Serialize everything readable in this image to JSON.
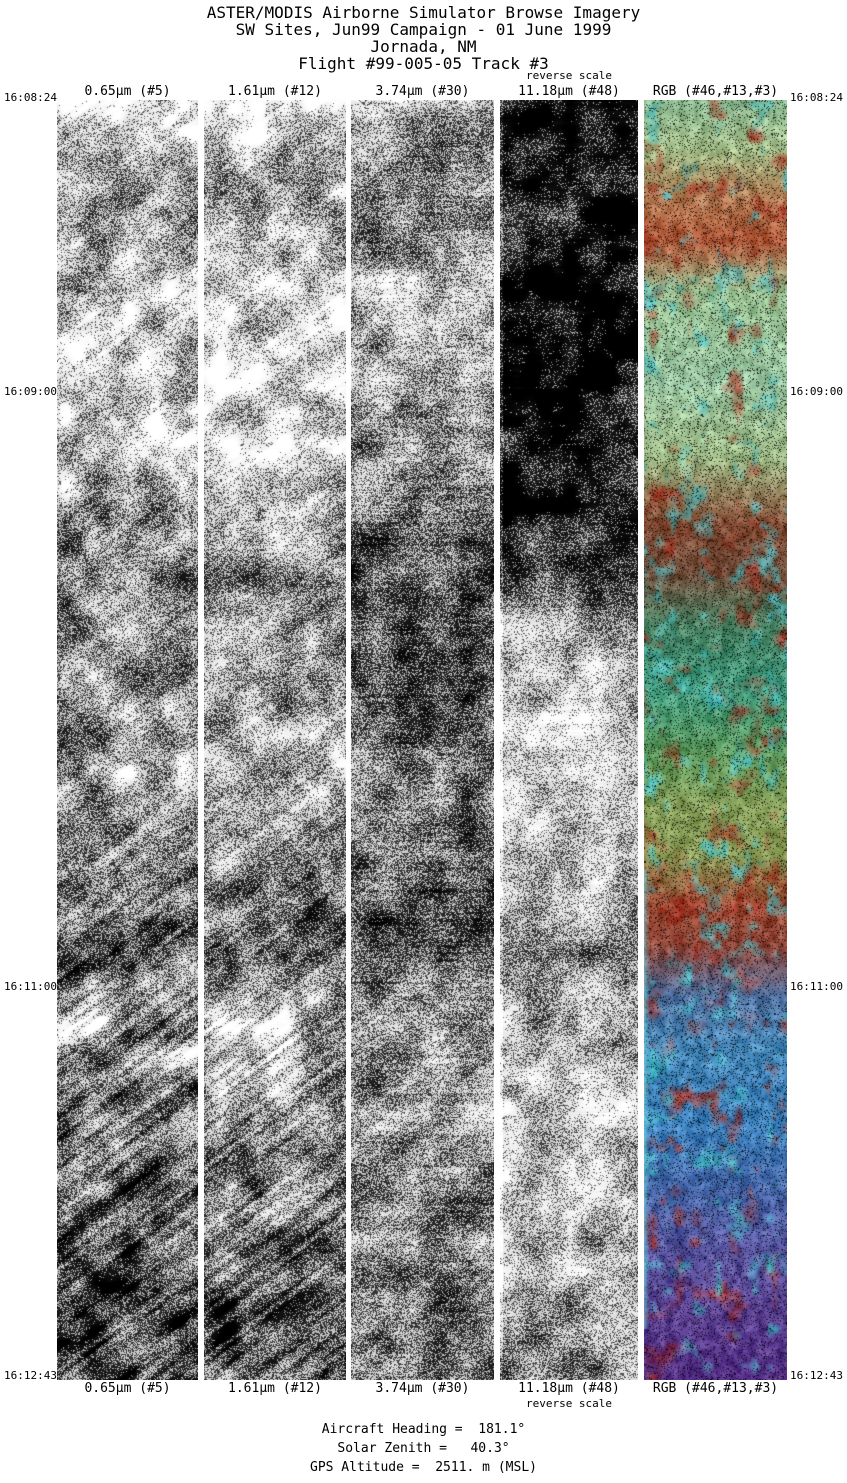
{
  "page": {
    "background": "#ffffff",
    "text_color": "#000000"
  },
  "title": {
    "line1": "ASTER/MODIS Airborne Simulator Browse Imagery",
    "line2": "SW Sites, Jun99 Campaign - 01 June 1999",
    "line3": "Jornada, NM",
    "line4": "Flight #99-005-05 Track #3"
  },
  "reverse_scale_label": "reverse scale",
  "columns": [
    {
      "label": "0.65μm (#5)"
    },
    {
      "label": "1.61μm (#12)"
    },
    {
      "label": "3.74μm (#30)"
    },
    {
      "label": "11.18μm (#48)"
    },
    {
      "label": "RGB (#46,#13,#3)"
    }
  ],
  "time_labels": [
    "16:08:24",
    "16:09:00",
    "16:11:00",
    "16:12:43"
  ],
  "footer": {
    "aircraft_heading": "Aircraft Heading =  181.1°",
    "solar_zenith": "Solar Zenith =   40.3°",
    "gps_altitude": "GPS Altitude =  2511. m (MSL)"
  },
  "strips": [
    {
      "name": "band-0.65um",
      "type": "gray",
      "streak": 0.5,
      "hband": 0.06,
      "amp": 0.85,
      "profile": [
        [
          0,
          0.82
        ],
        [
          0.03,
          0.76
        ],
        [
          0.06,
          0.62
        ],
        [
          0.09,
          0.5
        ],
        [
          0.12,
          0.72
        ],
        [
          0.2,
          0.8
        ],
        [
          0.27,
          0.74
        ],
        [
          0.33,
          0.58
        ],
        [
          0.38,
          0.48
        ],
        [
          0.43,
          0.5
        ],
        [
          0.48,
          0.62
        ],
        [
          0.53,
          0.68
        ],
        [
          0.58,
          0.5
        ],
        [
          0.62,
          0.42
        ],
        [
          0.66,
          0.4
        ],
        [
          0.7,
          0.55
        ],
        [
          0.74,
          0.62
        ],
        [
          0.78,
          0.5
        ],
        [
          0.82,
          0.42
        ],
        [
          0.87,
          0.38
        ],
        [
          0.93,
          0.3
        ],
        [
          1,
          0.27
        ]
      ]
    },
    {
      "name": "band-1.61um",
      "type": "gray",
      "streak": 0.45,
      "hband": 0.05,
      "amp": 0.8,
      "profile": [
        [
          0,
          0.85
        ],
        [
          0.03,
          0.8
        ],
        [
          0.06,
          0.66
        ],
        [
          0.09,
          0.55
        ],
        [
          0.12,
          0.76
        ],
        [
          0.2,
          0.83
        ],
        [
          0.27,
          0.78
        ],
        [
          0.33,
          0.62
        ],
        [
          0.38,
          0.52
        ],
        [
          0.43,
          0.55
        ],
        [
          0.48,
          0.66
        ],
        [
          0.53,
          0.72
        ],
        [
          0.58,
          0.55
        ],
        [
          0.62,
          0.46
        ],
        [
          0.66,
          0.44
        ],
        [
          0.7,
          0.6
        ],
        [
          0.74,
          0.66
        ],
        [
          0.78,
          0.55
        ],
        [
          0.82,
          0.48
        ],
        [
          0.87,
          0.44
        ],
        [
          0.93,
          0.38
        ],
        [
          1,
          0.4
        ]
      ]
    },
    {
      "name": "band-3.74um",
      "type": "gray",
      "streak": 0.18,
      "hband": 0.2,
      "amp": 0.75,
      "profile": [
        [
          0,
          0.72
        ],
        [
          0.04,
          0.62
        ],
        [
          0.08,
          0.52
        ],
        [
          0.12,
          0.66
        ],
        [
          0.2,
          0.62
        ],
        [
          0.27,
          0.56
        ],
        [
          0.33,
          0.42
        ],
        [
          0.38,
          0.3
        ],
        [
          0.44,
          0.32
        ],
        [
          0.5,
          0.52
        ],
        [
          0.55,
          0.5
        ],
        [
          0.6,
          0.4
        ],
        [
          0.64,
          0.36
        ],
        [
          0.68,
          0.5
        ],
        [
          0.74,
          0.56
        ],
        [
          0.8,
          0.54
        ],
        [
          0.88,
          0.52
        ],
        [
          1,
          0.46
        ]
      ]
    },
    {
      "name": "band-11.18um-reverse",
      "type": "gray",
      "streak": 0.12,
      "hband": 0.1,
      "amp": 0.7,
      "profile": [
        [
          0,
          0.14
        ],
        [
          0.18,
          0.1
        ],
        [
          0.28,
          0.13
        ],
        [
          0.36,
          0.22
        ],
        [
          0.41,
          0.55
        ],
        [
          0.45,
          0.75
        ],
        [
          0.5,
          0.8
        ],
        [
          0.56,
          0.74
        ],
        [
          0.62,
          0.68
        ],
        [
          0.67,
          0.58
        ],
        [
          0.71,
          0.68
        ],
        [
          0.76,
          0.78
        ],
        [
          0.83,
          0.76
        ],
        [
          0.9,
          0.64
        ],
        [
          0.95,
          0.58
        ],
        [
          1,
          0.55
        ]
      ]
    },
    {
      "name": "rgb-composite",
      "type": "rgb",
      "red_patch_color": "#b23424",
      "cyan_patch_color": "#46c4cd",
      "edge_glow_color": "#7ae0e8",
      "stops": [
        [
          0,
          "#93c39a"
        ],
        [
          0.04,
          "#acc48e"
        ],
        [
          0.08,
          "#b4764e"
        ],
        [
          0.11,
          "#b85c3c"
        ],
        [
          0.15,
          "#9cc494"
        ],
        [
          0.22,
          "#9ecba6"
        ],
        [
          0.28,
          "#a8c48e"
        ],
        [
          0.33,
          "#8a5038"
        ],
        [
          0.37,
          "#74503c"
        ],
        [
          0.41,
          "#4f8a6a"
        ],
        [
          0.46,
          "#43a284"
        ],
        [
          0.51,
          "#62a062"
        ],
        [
          0.55,
          "#8aa45c"
        ],
        [
          0.59,
          "#8ea05a"
        ],
        [
          0.63,
          "#a04a34"
        ],
        [
          0.66,
          "#964a3c"
        ],
        [
          0.7,
          "#587bac"
        ],
        [
          0.74,
          "#4b8fc2"
        ],
        [
          0.8,
          "#3f86c4"
        ],
        [
          0.85,
          "#4a6cb0"
        ],
        [
          0.9,
          "#5a55a4"
        ],
        [
          0.95,
          "#5f4398"
        ],
        [
          1,
          "#5c3590"
        ]
      ]
    }
  ]
}
